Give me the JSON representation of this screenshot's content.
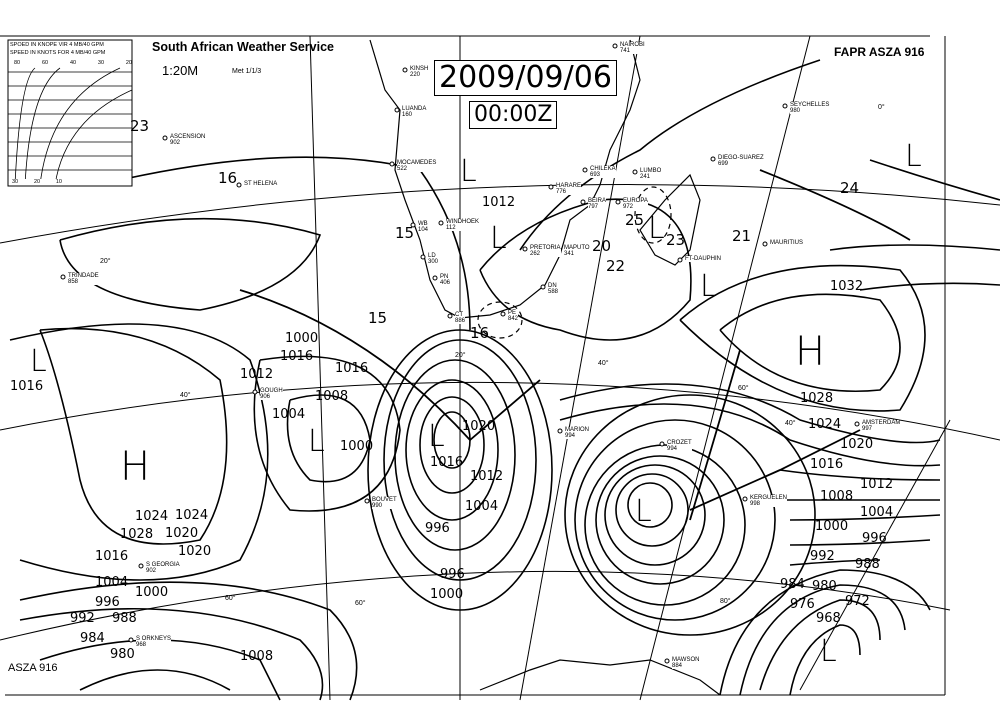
{
  "header": {
    "service": "South African Weather Service",
    "scale": "1:20M",
    "met_ref": "Met 1/1/3",
    "chart_code": "FAPR ASZA 916",
    "bottom_code": "ASZA 916"
  },
  "legend": {
    "line1": "SPOED IN KNOPE VIR 4 MB/40 GPM",
    "line2": "SPEED IN KNOTS FOR 4 MB/40 GPM",
    "top_ticks": [
      "80",
      "60",
      "40",
      "30",
      "20"
    ],
    "bottom_ticks": [
      "30",
      "20",
      "10"
    ]
  },
  "stamp": {
    "date": "2009/09/06",
    "time": "00:00Z"
  },
  "stations": [
    {
      "name": "ASCENSION",
      "code": "902"
    },
    {
      "name": "ST HELENA",
      "code": ""
    },
    {
      "name": "KINSH",
      "code": "220"
    },
    {
      "name": "LUANDA",
      "code": "160"
    },
    {
      "name": "MOCAMEDES",
      "code": "522"
    },
    {
      "name": "WB",
      "code": "104"
    },
    {
      "name": "WINDHOEK",
      "code": "112"
    },
    {
      "name": "LD",
      "code": "300"
    },
    {
      "name": "PN",
      "code": "406"
    },
    {
      "name": "CT",
      "code": "886"
    },
    {
      "name": "PE",
      "code": "842"
    },
    {
      "name": "DN",
      "code": "588"
    },
    {
      "name": "PRETORIA",
      "code": "262"
    },
    {
      "name": "MAPUTO",
      "code": "341"
    },
    {
      "name": "BEIRA",
      "code": "797"
    },
    {
      "name": "HARARE",
      "code": "776"
    },
    {
      "name": "CHILEKA",
      "code": "693"
    },
    {
      "name": "LUMBO",
      "code": "241"
    },
    {
      "name": "NAIROBI",
      "code": "741"
    },
    {
      "name": "DIEGO-SUAREZ",
      "code": "699"
    },
    {
      "name": "SEYCHELLES",
      "code": "980"
    },
    {
      "name": "EUROPA",
      "code": "972"
    },
    {
      "name": "FT-DAUPHIN",
      "code": ""
    },
    {
      "name": "MAURITIUS",
      "code": ""
    },
    {
      "name": "TRINDADE",
      "code": "858"
    },
    {
      "name": "GOUGH",
      "code": "906"
    },
    {
      "name": "MARION",
      "code": "994"
    },
    {
      "name": "CROZET",
      "code": "994"
    },
    {
      "name": "KERGUELEN",
      "code": "998"
    },
    {
      "name": "AMSTERDAM",
      "code": "997"
    },
    {
      "name": "BOUVET",
      "code": "990"
    },
    {
      "name": "S GEORGIA",
      "code": "902"
    },
    {
      "name": "S ORKNEYS",
      "code": "968"
    },
    {
      "name": "MAWSON",
      "code": "884"
    }
  ],
  "lat_labels": [
    "20°",
    "40°",
    "60°",
    "20°",
    "40°",
    "40°",
    "60°",
    "60°",
    "80°",
    "0°"
  ],
  "pressure_systems": [
    "L",
    "L",
    "L",
    "L",
    "L",
    "L",
    "L",
    "L",
    "L",
    "L",
    "H",
    "H"
  ],
  "isobar_labels": [
    "1012",
    "1012",
    "1016",
    "1016",
    "1000",
    "1000",
    "1004",
    "1008",
    "1016",
    "1020",
    "1024",
    "1028",
    "1032",
    "1028",
    "1024",
    "1020",
    "1016",
    "1012",
    "1008",
    "1004",
    "1000",
    "996",
    "992",
    "988",
    "984",
    "980",
    "976",
    "972",
    "968",
    "1016",
    "1020",
    "1024",
    "1008",
    "1004",
    "1000",
    "996",
    "992",
    "988",
    "984",
    "980",
    "996",
    "1000",
    "996",
    "1004",
    "1012",
    "1016",
    "1020"
  ],
  "winds": [
    "23",
    "16",
    "15",
    "15",
    "16",
    "20",
    "22",
    "21",
    "24",
    "23",
    "25"
  ]
}
